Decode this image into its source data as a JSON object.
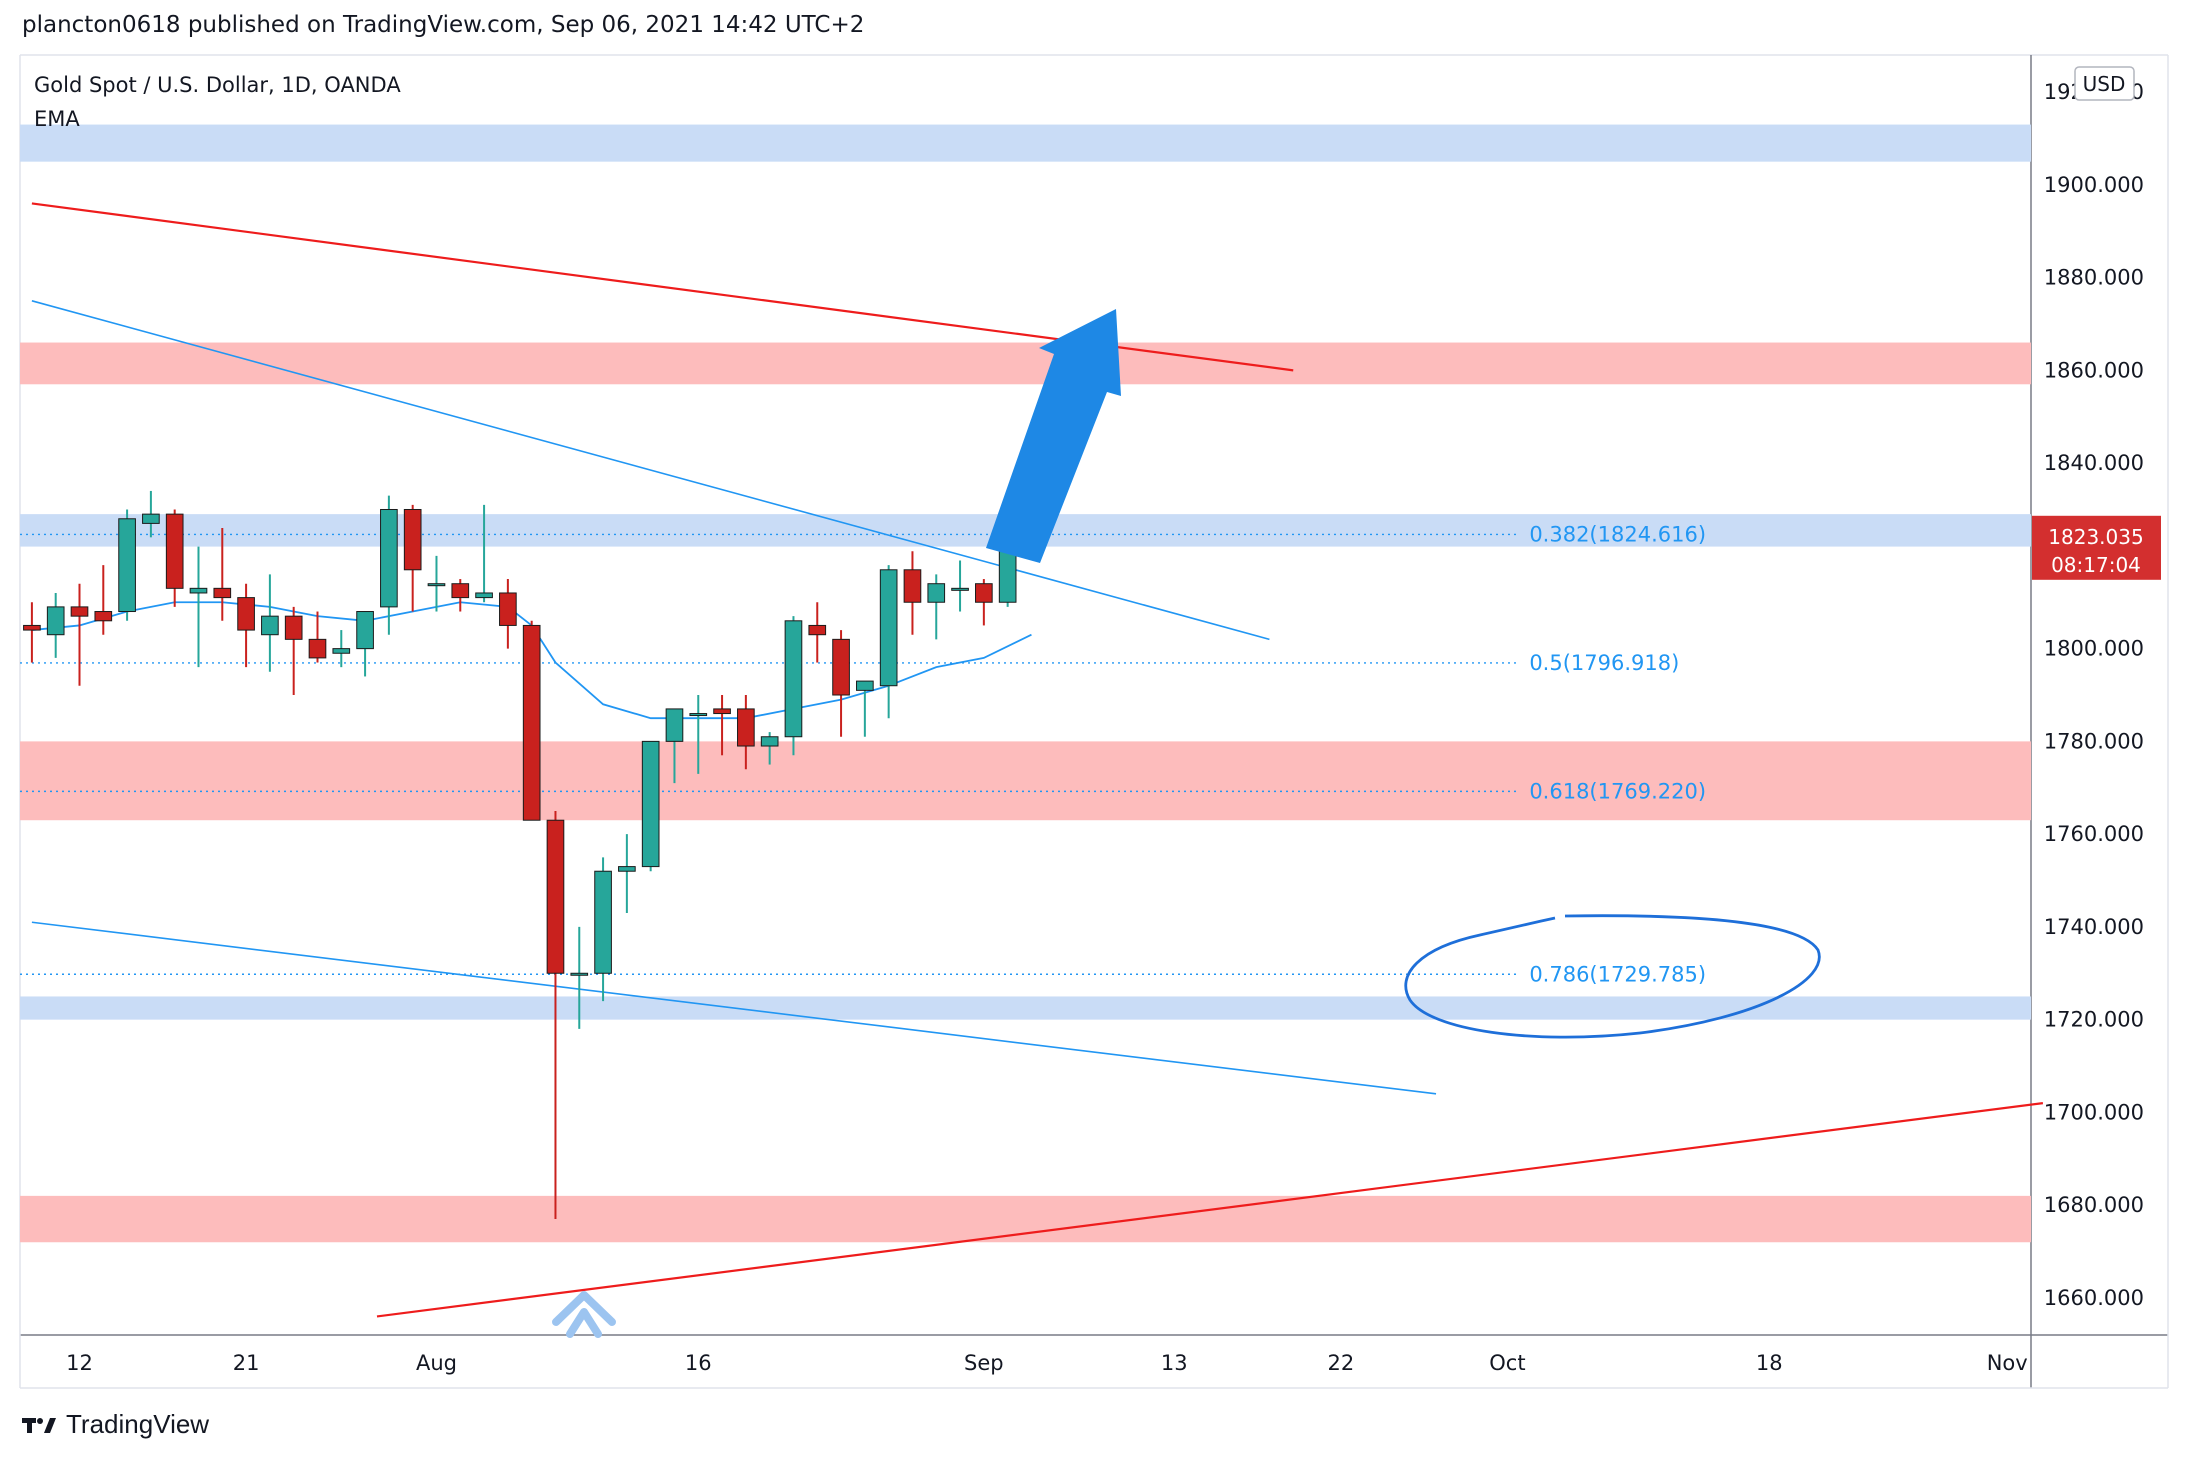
{
  "header": {
    "publish_line": "plancton0618 published on TradingView.com, Sep 06, 2021 14:42 UTC+2"
  },
  "legend": {
    "symbol": "Gold Spot / U.S. Dollar, 1D, OANDA",
    "indicator": "EMA"
  },
  "axis": {
    "currency": "USD"
  },
  "price_badge": {
    "price": "1823.035",
    "countdown": "08:17:04"
  },
  "footer": {
    "brand": "TradingView"
  },
  "colors": {
    "bull": "#26a69a",
    "bull_dark": "#1f6e64",
    "bear": "#c9211e",
    "ema": "#2196f3",
    "trend_red": "#ee1c1c",
    "zone_red": "#fdbcbc",
    "zone_blue": "#c9dcf6",
    "arrow": "#1e88e5",
    "badge": "#d32f2f"
  },
  "chart_data": {
    "type": "candlestick",
    "title": "Gold Spot / U.S. Dollar, 1D, OANDA",
    "ylim": [
      1652,
      1928
    ],
    "y_ticks": [
      1660,
      1680,
      1700,
      1720,
      1740,
      1760,
      1780,
      1800,
      1820,
      1840,
      1860,
      1880,
      1900,
      1920
    ],
    "y_tick_labels": [
      "1660.000",
      "1680.000",
      "1700.000",
      "1720.000",
      "1740.000",
      "1760.000",
      "1780.000",
      "1800.000",
      "1820.000",
      "1840.000",
      "1860.000",
      "1880.000",
      "1900.000",
      "1920.000"
    ],
    "x_ticks": [
      {
        "label": "12",
        "bar": 2
      },
      {
        "label": "21",
        "bar": 9
      },
      {
        "label": "Aug",
        "bar": 17
      },
      {
        "label": "16",
        "bar": 28
      },
      {
        "label": "Sep",
        "bar": 40
      },
      {
        "label": "13",
        "bar": 48
      },
      {
        "label": "22",
        "bar": 55
      },
      {
        "label": "Oct",
        "bar": 62
      },
      {
        "label": "18",
        "bar": 73
      },
      {
        "label": "Nov",
        "bar": 83
      }
    ],
    "bar_range": [
      0,
      84.5
    ],
    "candles": [
      {
        "bar": 0,
        "o": 1805,
        "h": 1810,
        "l": 1797,
        "c": 1804
      },
      {
        "bar": 1,
        "o": 1803,
        "h": 1812,
        "l": 1798,
        "c": 1809
      },
      {
        "bar": 2,
        "o": 1809,
        "h": 1814,
        "l": 1792,
        "c": 1807
      },
      {
        "bar": 3,
        "o": 1808,
        "h": 1818,
        "l": 1803,
        "c": 1806
      },
      {
        "bar": 4,
        "o": 1808,
        "h": 1830,
        "l": 1806,
        "c": 1828
      },
      {
        "bar": 5,
        "o": 1827,
        "h": 1834,
        "l": 1824,
        "c": 1829
      },
      {
        "bar": 6,
        "o": 1829,
        "h": 1830,
        "l": 1809,
        "c": 1813
      },
      {
        "bar": 7,
        "o": 1812,
        "h": 1822,
        "l": 1796,
        "c": 1813
      },
      {
        "bar": 8,
        "o": 1813,
        "h": 1826,
        "l": 1806,
        "c": 1811
      },
      {
        "bar": 9,
        "o": 1811,
        "h": 1814,
        "l": 1796,
        "c": 1804
      },
      {
        "bar": 10,
        "o": 1803,
        "h": 1816,
        "l": 1795,
        "c": 1807
      },
      {
        "bar": 11,
        "o": 1807,
        "h": 1809,
        "l": 1790,
        "c": 1802
      },
      {
        "bar": 12,
        "o": 1802,
        "h": 1808,
        "l": 1797,
        "c": 1798
      },
      {
        "bar": 13,
        "o": 1799,
        "h": 1804,
        "l": 1796,
        "c": 1800
      },
      {
        "bar": 14,
        "o": 1800,
        "h": 1806,
        "l": 1794,
        "c": 1808
      },
      {
        "bar": 15,
        "o": 1809,
        "h": 1833,
        "l": 1803,
        "c": 1830
      },
      {
        "bar": 16,
        "o": 1830,
        "h": 1831,
        "l": 1808,
        "c": 1817
      },
      {
        "bar": 17,
        "o": 1814,
        "h": 1820,
        "l": 1808,
        "c": 1814
      },
      {
        "bar": 18,
        "o": 1814,
        "h": 1815,
        "l": 1808,
        "c": 1811
      },
      {
        "bar": 19,
        "o": 1811,
        "h": 1831,
        "l": 1810,
        "c": 1812
      },
      {
        "bar": 20,
        "o": 1812,
        "h": 1815,
        "l": 1800,
        "c": 1805
      },
      {
        "bar": 21,
        "o": 1805,
        "h": 1806,
        "l": 1764,
        "c": 1763
      },
      {
        "bar": 22,
        "o": 1763,
        "h": 1765,
        "l": 1677,
        "c": 1730
      },
      {
        "bar": 23,
        "o": 1730,
        "h": 1740,
        "l": 1718,
        "c": 1730
      },
      {
        "bar": 24,
        "o": 1730,
        "h": 1755,
        "l": 1724,
        "c": 1752
      },
      {
        "bar": 25,
        "o": 1752,
        "h": 1760,
        "l": 1743,
        "c": 1753
      },
      {
        "bar": 26,
        "o": 1753,
        "h": 1780,
        "l": 1752,
        "c": 1780
      },
      {
        "bar": 27,
        "o": 1780,
        "h": 1785,
        "l": 1771,
        "c": 1787
      },
      {
        "bar": 28,
        "o": 1786,
        "h": 1790,
        "l": 1773,
        "c": 1786
      },
      {
        "bar": 29,
        "o": 1787,
        "h": 1790,
        "l": 1777,
        "c": 1786
      },
      {
        "bar": 30,
        "o": 1787,
        "h": 1790,
        "l": 1774,
        "c": 1779
      },
      {
        "bar": 31,
        "o": 1779,
        "h": 1782,
        "l": 1775,
        "c": 1781
      },
      {
        "bar": 32,
        "o": 1781,
        "h": 1807,
        "l": 1777,
        "c": 1806
      },
      {
        "bar": 33,
        "o": 1805,
        "h": 1810,
        "l": 1797,
        "c": 1803
      },
      {
        "bar": 34,
        "o": 1802,
        "h": 1804,
        "l": 1781,
        "c": 1790
      },
      {
        "bar": 35,
        "o": 1791,
        "h": 1791,
        "l": 1781,
        "c": 1793
      },
      {
        "bar": 36,
        "o": 1792,
        "h": 1818,
        "l": 1785,
        "c": 1817
      },
      {
        "bar": 37,
        "o": 1817,
        "h": 1821,
        "l": 1803,
        "c": 1810
      },
      {
        "bar": 38,
        "o": 1810,
        "h": 1816,
        "l": 1802,
        "c": 1814
      },
      {
        "bar": 39,
        "o": 1813,
        "h": 1819,
        "l": 1808,
        "c": 1813
      },
      {
        "bar": 40,
        "o": 1814,
        "h": 1815,
        "l": 1805,
        "c": 1810
      },
      {
        "bar": 41,
        "o": 1810,
        "h": 1829,
        "l": 1809,
        "c": 1827
      },
      {
        "bar": 42,
        "o": 1827,
        "h": 1829,
        "l": 1822,
        "c": 1823
      }
    ],
    "ema": [
      {
        "bar": 0,
        "y": 1804
      },
      {
        "bar": 2,
        "y": 1805
      },
      {
        "bar": 4,
        "y": 1808
      },
      {
        "bar": 6,
        "y": 1810
      },
      {
        "bar": 8,
        "y": 1810
      },
      {
        "bar": 10,
        "y": 1809
      },
      {
        "bar": 12,
        "y": 1807
      },
      {
        "bar": 14,
        "y": 1806
      },
      {
        "bar": 16,
        "y": 1808
      },
      {
        "bar": 18,
        "y": 1810
      },
      {
        "bar": 20,
        "y": 1809
      },
      {
        "bar": 21,
        "y": 1805
      },
      {
        "bar": 22,
        "y": 1797
      },
      {
        "bar": 24,
        "y": 1788
      },
      {
        "bar": 26,
        "y": 1785
      },
      {
        "bar": 28,
        "y": 1785
      },
      {
        "bar": 30,
        "y": 1785
      },
      {
        "bar": 32,
        "y": 1787
      },
      {
        "bar": 34,
        "y": 1789
      },
      {
        "bar": 36,
        "y": 1792
      },
      {
        "bar": 38,
        "y": 1796
      },
      {
        "bar": 40,
        "y": 1798
      },
      {
        "bar": 42,
        "y": 1803
      }
    ],
    "zones": [
      {
        "from": 1905,
        "to": 1913,
        "color": "blue"
      },
      {
        "from": 1857,
        "to": 1866,
        "color": "red"
      },
      {
        "from": 1822,
        "to": 1829,
        "color": "blue"
      },
      {
        "from": 1763,
        "to": 1780,
        "color": "red"
      },
      {
        "from": 1720,
        "to": 1725,
        "color": "blue"
      },
      {
        "from": 1672,
        "to": 1682,
        "color": "red"
      }
    ],
    "trendlines": [
      {
        "x1": 0,
        "y1": 1896,
        "x2": 53,
        "y2": 1860,
        "color": "red",
        "width": 2.2
      },
      {
        "x1": 14.5,
        "y1": 1656,
        "x2": 84.5,
        "y2": 1702,
        "color": "red",
        "width": 2.2
      },
      {
        "x1": 0,
        "y1": 1875,
        "x2": 52,
        "y2": 1802,
        "color": "blue",
        "width": 1.6
      },
      {
        "x1": 0,
        "y1": 1741,
        "x2": 59,
        "y2": 1704,
        "color": "blue",
        "width": 1.6
      }
    ],
    "fib_levels": [
      {
        "label": "0.382(1824.616)",
        "price": 1824.616
      },
      {
        "label": "0.5(1796.918)",
        "price": 1796.918
      },
      {
        "label": "0.618(1769.220)",
        "price": 1769.22
      },
      {
        "label": "0.786(1729.785)",
        "price": 1729.785
      }
    ],
    "fib_x_range": [
      0,
      62.5
    ],
    "current_price": 1823.035
  }
}
